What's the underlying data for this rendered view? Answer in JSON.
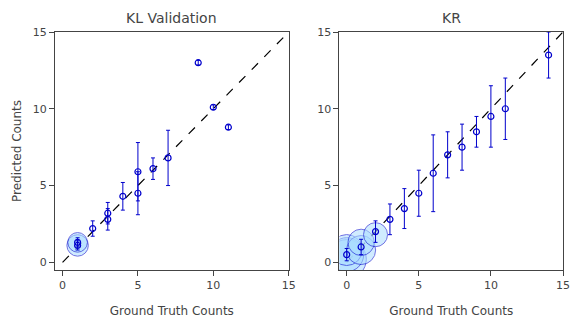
{
  "chart_data": [
    {
      "type": "scatter",
      "title": "KL Validation",
      "xlabel": "Ground Truth Counts",
      "ylabel": "Predicted Counts",
      "xlim": [
        -0.5,
        15
      ],
      "ylim": [
        -0.5,
        15
      ],
      "xticks": [
        0,
        5,
        10,
        15
      ],
      "yticks": [
        0,
        5,
        10,
        15
      ],
      "grid": false,
      "series": [
        {
          "type": "line",
          "x": [
            0,
            15
          ],
          "values": [
            0,
            15
          ],
          "color": "black",
          "line_style": "dashed"
        },
        {
          "type": "bubble",
          "x": [
            1,
            1
          ],
          "values": [
            1.1,
            1.3
          ],
          "sizes": [
            120,
            100
          ],
          "color": "#AADDFF"
        },
        {
          "type": "scatter",
          "x": [
            1,
            1,
            2,
            3,
            3,
            4,
            5,
            5,
            6,
            7,
            9,
            10,
            11
          ],
          "values": [
            1.1,
            1.3,
            2.2,
            2.8,
            3.2,
            4.3,
            4.5,
            5.9,
            6.1,
            6.8,
            13.0,
            10.1,
            8.8
          ],
          "errors": [
            0.3,
            0.3,
            0.5,
            0.7,
            0.7,
            0.9,
            1.4,
            1.9,
            0.7,
            1.8,
            0.15,
            0.15,
            0.15
          ],
          "color": "#0000CC",
          "marker": "open circle"
        }
      ]
    },
    {
      "type": "scatter",
      "title": "KR",
      "xlabel": "Ground Truth Counts",
      "xlim": [
        -0.5,
        15
      ],
      "ylim": [
        -0.5,
        15
      ],
      "xticks": [
        0,
        5,
        10,
        15
      ],
      "yticks": [
        0,
        5,
        10,
        15
      ],
      "grid": false,
      "series": [
        {
          "type": "line",
          "x": [
            0,
            15
          ],
          "values": [
            0,
            15
          ],
          "color": "black",
          "line_style": "dashed"
        },
        {
          "type": "bubble",
          "x": [
            0,
            0,
            0,
            1,
            1,
            2
          ],
          "values": [
            0.2,
            0.5,
            0.8,
            0.8,
            1.3,
            1.8
          ],
          "sizes": [
            400,
            300,
            250,
            220,
            180,
            150
          ],
          "color": "#AADDFF"
        },
        {
          "type": "scatter",
          "x": [
            0,
            1,
            2,
            3,
            4,
            5,
            6,
            7,
            8,
            9,
            10,
            11,
            14
          ],
          "values": [
            0.5,
            1.0,
            2.0,
            2.8,
            3.5,
            4.5,
            5.8,
            7.0,
            7.5,
            8.5,
            9.5,
            10.0,
            13.5
          ],
          "errors": [
            0.4,
            0.5,
            0.7,
            1.0,
            1.3,
            1.5,
            2.5,
            1.5,
            1.5,
            1.0,
            2.0,
            2.0,
            1.5
          ],
          "color": "#0000CC",
          "marker": "open circle"
        }
      ]
    }
  ]
}
